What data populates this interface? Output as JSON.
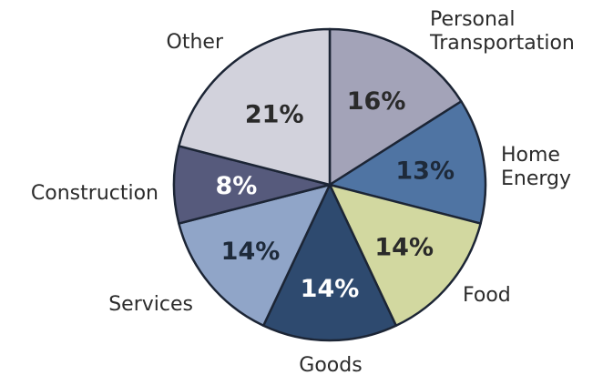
{
  "chart_data": {
    "type": "pie",
    "title": "",
    "legend": "none",
    "slices": [
      {
        "label_lines": [
          "Personal",
          "Transportation"
        ],
        "value": 16,
        "value_label": "16%",
        "color": "#a3a3b8",
        "text_color": "#2a2a2a"
      },
      {
        "label_lines": [
          "Home",
          "Energy"
        ],
        "value": 13,
        "value_label": "13%",
        "color": "#4f74a3",
        "text_color": "#1e2a3a"
      },
      {
        "label_lines": [
          "Food"
        ],
        "value": 14,
        "value_label": "14%",
        "color": "#d2d8a0",
        "text_color": "#2a2a2a"
      },
      {
        "label_lines": [
          "Goods"
        ],
        "value": 14,
        "value_label": "14%",
        "color": "#2e4a6f",
        "text_color": "#ffffff"
      },
      {
        "label_lines": [
          "Services"
        ],
        "value": 14,
        "value_label": "14%",
        "color": "#90a5c8",
        "text_color": "#1e2a3a"
      },
      {
        "label_lines": [
          "Construction"
        ],
        "value": 8,
        "value_label": "8%",
        "color": "#565a7c",
        "text_color": "#ffffff"
      },
      {
        "label_lines": [
          "Other"
        ],
        "value": 21,
        "value_label": "21%",
        "color": "#d2d2dc",
        "text_color": "#2a2a2a"
      }
    ]
  }
}
